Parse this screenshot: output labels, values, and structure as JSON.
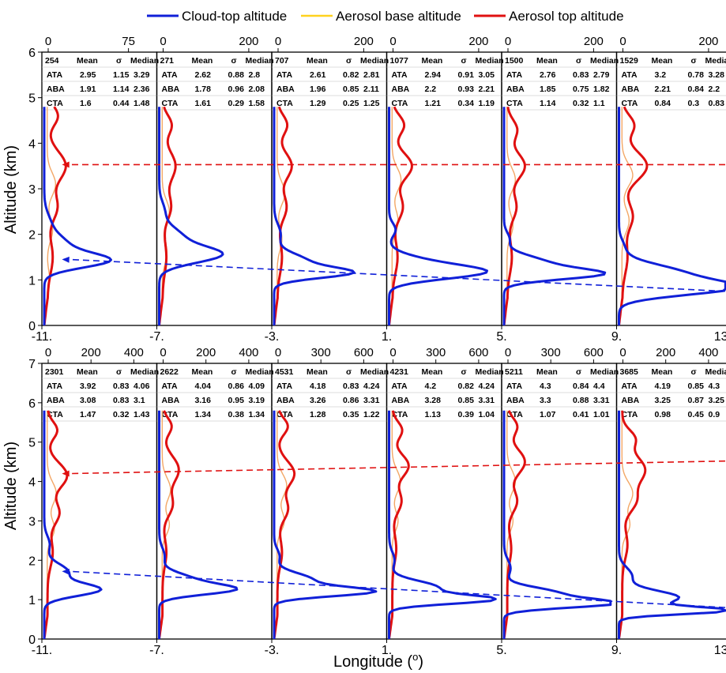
{
  "legend": [
    {
      "label": "Cloud-top altitude",
      "color": "#1020d8"
    },
    {
      "label": "Aerosol base altitude",
      "color": "#ffd21e"
    },
    {
      "label": "Aerosol top altitude",
      "color": "#e01010"
    }
  ],
  "axis_labels": {
    "y": "Altitude (km)",
    "x": "Longitude (",
    "x_sup": "o",
    "x_close": ")"
  },
  "x_ticks": [
    "-11.",
    "-7.",
    "-3.",
    "1.",
    "5.",
    "9.",
    "13."
  ],
  "table_headers": [
    "Mean",
    "σ",
    "Median"
  ],
  "chart_data": [
    {
      "type": "line",
      "row": "top",
      "ylabel": "Altitude (km)",
      "xlabel": "Longitude (o)",
      "ylim": [
        0,
        6
      ],
      "y_ticks": [
        0,
        1,
        2,
        3,
        4,
        5,
        6
      ],
      "legend_position": "top",
      "arrows": [
        {
          "series": "Aerosol top altitude",
          "from": [
            -10.3,
            3.53
          ],
          "to": [
            13.0,
            3.53
          ]
        },
        {
          "series": "Cloud-top altitude",
          "from": [
            -10.3,
            1.45
          ],
          "to": [
            13.0,
            0.75
          ]
        }
      ],
      "panels": [
        {
          "lon_start": -11,
          "top_ticks": [
            "0",
            "75"
          ],
          "max": 100,
          "table": {
            "count": "254",
            "rows": [
              [
                "ATA",
                "2.95",
                "1.15",
                "3.29"
              ],
              [
                "ABA",
                "1.91",
                "1.14",
                "2.36"
              ],
              [
                "CTA",
                "1.6",
                "0.44",
                "1.48"
              ]
            ]
          }
        },
        {
          "lon_start": -7,
          "top_ticks": [
            "0",
            "200"
          ],
          "max": 250,
          "table": {
            "count": "271",
            "rows": [
              [
                "ATA",
                "2.62",
                "0.88",
                "2.8"
              ],
              [
                "ABA",
                "1.78",
                "0.96",
                "2.08"
              ],
              [
                "CTA",
                "1.61",
                "0.29",
                "1.58"
              ]
            ]
          }
        },
        {
          "lon_start": -3,
          "top_ticks": [
            "0",
            "200"
          ],
          "max": 250,
          "table": {
            "count": "707",
            "rows": [
              [
                "ATA",
                "2.61",
                "0.82",
                "2.81"
              ],
              [
                "ABA",
                "1.96",
                "0.85",
                "2.11"
              ],
              [
                "CTA",
                "1.29",
                "0.25",
                "1.25"
              ]
            ]
          }
        },
        {
          "lon_start": 1,
          "top_ticks": [
            "0",
            "200"
          ],
          "max": 250,
          "table": {
            "count": "1077",
            "rows": [
              [
                "ATA",
                "2.94",
                "0.91",
                "3.05"
              ],
              [
                "ABA",
                "2.2",
                "0.93",
                "2.21"
              ],
              [
                "CTA",
                "1.21",
                "0.34",
                "1.19"
              ]
            ]
          }
        },
        {
          "lon_start": 5,
          "top_ticks": [
            "0",
            "200"
          ],
          "max": 250,
          "table": {
            "count": "1500",
            "rows": [
              [
                "ATA",
                "2.76",
                "0.83",
                "2.79"
              ],
              [
                "ABA",
                "1.85",
                "0.75",
                "1.82"
              ],
              [
                "CTA",
                "1.14",
                "0.32",
                "1.1"
              ]
            ]
          }
        },
        {
          "lon_start": 9,
          "top_ticks": [
            "0",
            "200"
          ],
          "max": 250,
          "table": {
            "count": "1529",
            "rows": [
              [
                "ATA",
                "3.2",
                "0.78",
                "3.28"
              ],
              [
                "ABA",
                "2.21",
                "0.84",
                "2.2"
              ],
              [
                "CTA",
                "0.84",
                "0.3",
                "0.83"
              ]
            ]
          }
        }
      ]
    },
    {
      "type": "line",
      "row": "bottom",
      "ylabel": "Altitude (km)",
      "xlabel": "Longitude (o)",
      "ylim": [
        0,
        7
      ],
      "y_ticks": [
        0,
        1,
        2,
        3,
        4,
        5,
        6,
        7
      ],
      "legend_position": "top",
      "arrows": [
        {
          "series": "Aerosol top altitude",
          "from": [
            -10.3,
            4.2
          ],
          "to": [
            13.0,
            4.52
          ]
        },
        {
          "series": "Cloud-top altitude",
          "from": [
            -10.3,
            1.72
          ],
          "to": [
            13.0,
            0.8
          ]
        }
      ],
      "panels": [
        {
          "lon_start": -11,
          "top_ticks": [
            "0",
            "200",
            "400"
          ],
          "max": 500,
          "table": {
            "count": "2301",
            "rows": [
              [
                "ATA",
                "3.92",
                "0.83",
                "4.06"
              ],
              [
                "ABA",
                "3.08",
                "0.83",
                "3.1"
              ],
              [
                "CTA",
                "1.47",
                "0.32",
                "1.43"
              ]
            ]
          }
        },
        {
          "lon_start": -7,
          "top_ticks": [
            "0",
            "200",
            "400"
          ],
          "max": 500,
          "table": {
            "count": "2622",
            "rows": [
              [
                "ATA",
                "4.04",
                "0.86",
                "4.09"
              ],
              [
                "ABA",
                "3.16",
                "0.95",
                "3.19"
              ],
              [
                "CTA",
                "1.34",
                "0.38",
                "1.34"
              ]
            ]
          }
        },
        {
          "lon_start": -3,
          "top_ticks": [
            "0",
            "300",
            "600"
          ],
          "max": 750,
          "table": {
            "count": "4531",
            "rows": [
              [
                "ATA",
                "4.18",
                "0.83",
                "4.24"
              ],
              [
                "ABA",
                "3.26",
                "0.86",
                "3.31"
              ],
              [
                "CTA",
                "1.28",
                "0.35",
                "1.22"
              ]
            ]
          }
        },
        {
          "lon_start": 1,
          "top_ticks": [
            "0",
            "300",
            "600"
          ],
          "max": 750,
          "table": {
            "count": "4231",
            "rows": [
              [
                "ATA",
                "4.2",
                "0.82",
                "4.24"
              ],
              [
                "ABA",
                "3.28",
                "0.85",
                "3.31"
              ],
              [
                "CTA",
                "1.13",
                "0.39",
                "1.04"
              ]
            ]
          }
        },
        {
          "lon_start": 5,
          "top_ticks": [
            "0",
            "300",
            "600"
          ],
          "max": 750,
          "table": {
            "count": "5211",
            "rows": [
              [
                "ATA",
                "4.3",
                "0.84",
                "4.4"
              ],
              [
                "ABA",
                "3.3",
                "0.88",
                "3.31"
              ],
              [
                "CTA",
                "1.07",
                "0.41",
                "1.01"
              ]
            ]
          }
        },
        {
          "lon_start": 9,
          "top_ticks": [
            "0",
            "200",
            "400"
          ],
          "max": 500,
          "table": {
            "count": "3685",
            "rows": [
              [
                "ATA",
                "4.19",
                "0.85",
                "4.3"
              ],
              [
                "ABA",
                "3.25",
                "0.87",
                "3.25"
              ],
              [
                "CTA",
                "0.98",
                "0.45",
                "0.9"
              ]
            ]
          }
        }
      ]
    }
  ]
}
